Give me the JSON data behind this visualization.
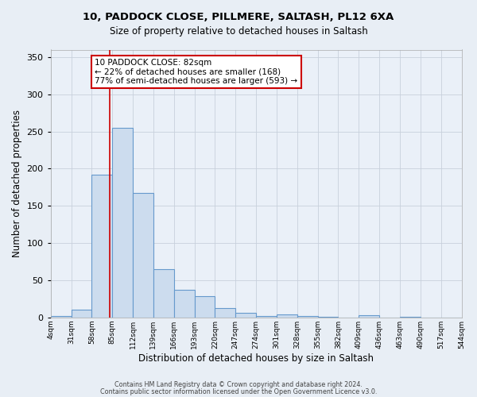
{
  "title1": "10, PADDOCK CLOSE, PILLMERE, SALTASH, PL12 6XA",
  "title2": "Size of property relative to detached houses in Saltash",
  "xlabel": "Distribution of detached houses by size in Saltash",
  "ylabel": "Number of detached properties",
  "bar_values": [
    2,
    10,
    192,
    255,
    167,
    65,
    37,
    29,
    13,
    6,
    2,
    4,
    2,
    1,
    0,
    3,
    0,
    1,
    0,
    0
  ],
  "bin_edges": [
    4,
    31,
    58,
    85,
    112,
    139,
    166,
    193,
    220,
    247,
    274,
    301,
    328,
    355,
    382,
    409,
    436,
    463,
    490,
    517,
    544
  ],
  "tick_labels": [
    "4sqm",
    "31sqm",
    "58sqm",
    "85sqm",
    "112sqm",
    "139sqm",
    "166sqm",
    "193sqm",
    "220sqm",
    "247sqm",
    "274sqm",
    "301sqm",
    "328sqm",
    "355sqm",
    "382sqm",
    "409sqm",
    "436sqm",
    "463sqm",
    "490sqm",
    "517sqm",
    "544sqm"
  ],
  "bar_color": "#ccdcee",
  "bar_edge_color": "#6699cc",
  "bar_edge_width": 0.8,
  "ylim": [
    0,
    360
  ],
  "yticks": [
    0,
    50,
    100,
    150,
    200,
    250,
    300,
    350
  ],
  "red_line_x": 82,
  "annotation_title": "10 PADDOCK CLOSE: 82sqm",
  "annotation_line1": "← 22% of detached houses are smaller (168)",
  "annotation_line2": "77% of semi-detached houses are larger (593) →",
  "annotation_box_color": "#ffffff",
  "annotation_box_edge": "#cc0000",
  "red_line_color": "#cc0000",
  "footer1": "Contains HM Land Registry data © Crown copyright and database right 2024.",
  "footer2": "Contains public sector information licensed under the Open Government Licence v3.0.",
  "background_color": "#e8eef5",
  "plot_bg_color": "#eaf0f8",
  "grid_color": "#c8d0dc"
}
